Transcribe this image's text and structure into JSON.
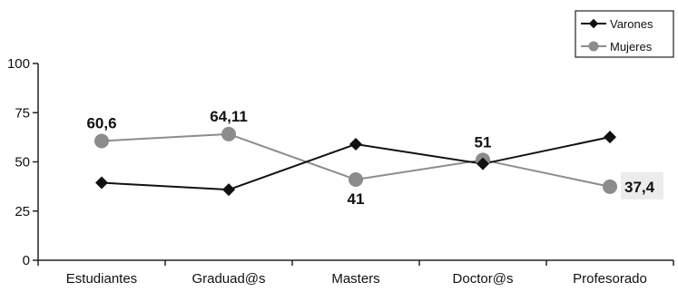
{
  "chart_data": {
    "type": "line",
    "categories": [
      "Estudiantes",
      "Graduad@s",
      "Masters",
      "Doctor@s",
      "Profesorado"
    ],
    "ylim": [
      0,
      100
    ],
    "yticks": [
      0,
      25,
      50,
      75,
      100
    ],
    "series": [
      {
        "name": "Varones",
        "values": [
          39.4,
          35.9,
          59,
          49,
          62.6
        ],
        "color": "#111111",
        "marker": "diamond"
      },
      {
        "name": "Mujeres",
        "values": [
          60.6,
          64.11,
          41,
          51,
          37.4
        ],
        "color": "#8c8c8c",
        "marker": "circle"
      }
    ],
    "data_labels": [
      {
        "series": 1,
        "index": 0,
        "text": "60,6",
        "position": "above"
      },
      {
        "series": 1,
        "index": 1,
        "text": "64,11",
        "position": "above"
      },
      {
        "series": 1,
        "index": 2,
        "text": "41",
        "position": "below"
      },
      {
        "series": 1,
        "index": 3,
        "text": "51",
        "position": "above"
      },
      {
        "series": 1,
        "index": 4,
        "text": "37,4",
        "position": "right"
      }
    ],
    "legend": {
      "placement": "top-right"
    },
    "grid": false
  }
}
